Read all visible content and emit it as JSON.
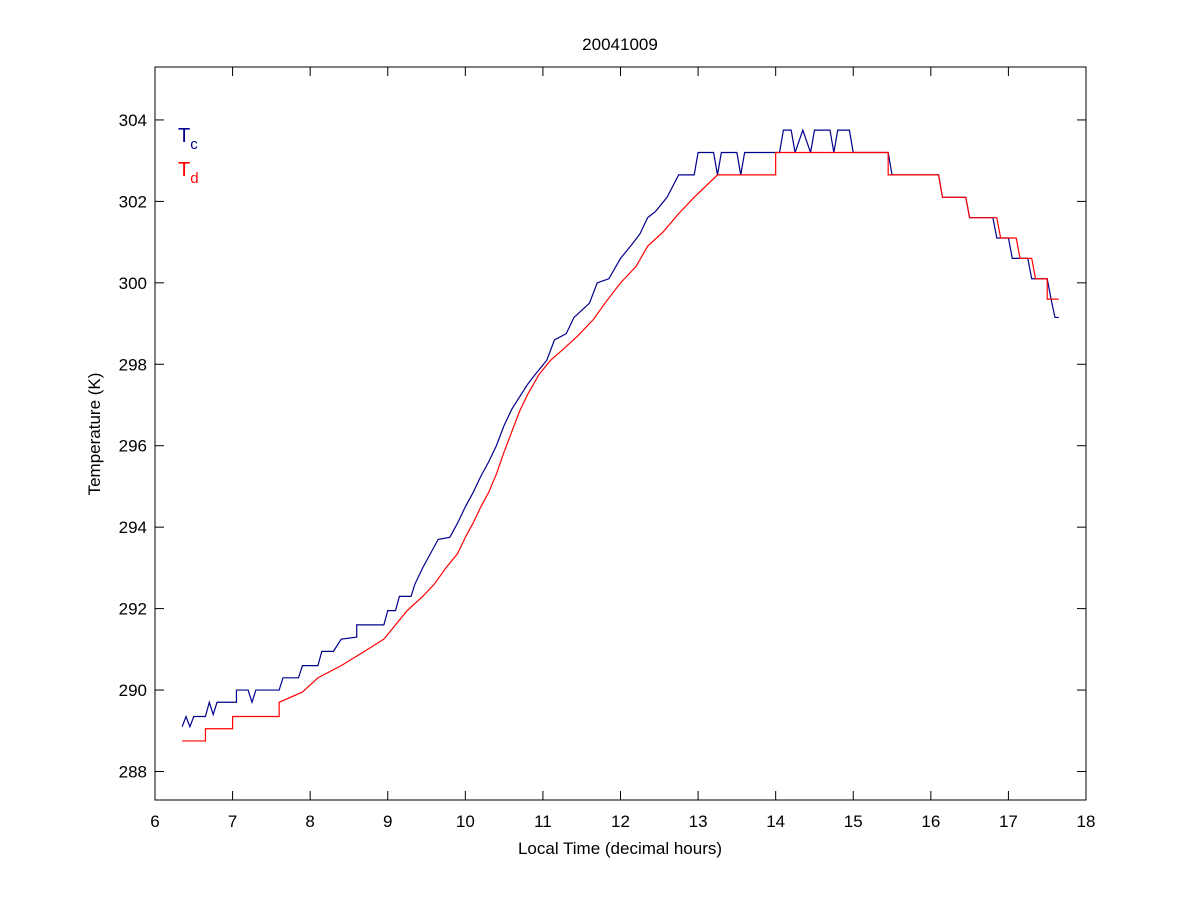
{
  "chart_data": {
    "type": "line",
    "title": "20041009",
    "xlabel": "Local Time (decimal hours)",
    "ylabel": "Temperature (K)",
    "xlim": [
      6,
      18
    ],
    "xticks": [
      6,
      7,
      8,
      9,
      10,
      11,
      12,
      13,
      14,
      15,
      16,
      17,
      18
    ],
    "ylim": [
      287.3,
      305.3
    ],
    "yticks": [
      288,
      290,
      292,
      294,
      296,
      298,
      300,
      302,
      304
    ],
    "legend": "upper left",
    "series": [
      {
        "name": "Tc",
        "color": "#00008b",
        "x": [
          6.35,
          6.4,
          6.45,
          6.5,
          6.65,
          6.7,
          6.75,
          6.8,
          7.05,
          7.05,
          7.2,
          7.25,
          7.3,
          7.6,
          7.65,
          7.85,
          7.9,
          8.1,
          8.15,
          8.3,
          8.4,
          8.6,
          8.6,
          8.95,
          9.0,
          9.1,
          9.15,
          9.3,
          9.35,
          9.45,
          9.55,
          9.65,
          9.8,
          9.9,
          10.0,
          10.1,
          10.2,
          10.3,
          10.4,
          10.5,
          10.6,
          10.7,
          10.8,
          10.9,
          11.05,
          11.15,
          11.3,
          11.4,
          11.6,
          11.7,
          11.85,
          12.0,
          12.15,
          12.25,
          12.35,
          12.45,
          12.6,
          12.75,
          12.95,
          13.0,
          13.2,
          13.25,
          13.3,
          13.5,
          13.55,
          13.6,
          14.05,
          14.1,
          14.2,
          14.25,
          14.35,
          14.45,
          14.5,
          14.7,
          14.75,
          14.8,
          14.95,
          15.0,
          15.45,
          15.5,
          16.1,
          16.15,
          16.45,
          16.5,
          16.8,
          16.85,
          17.0,
          17.05,
          17.25,
          17.3,
          17.5,
          17.55,
          17.6,
          17.65
        ],
        "values": [
          289.1,
          289.35,
          289.1,
          289.35,
          289.35,
          289.7,
          289.4,
          289.7,
          289.7,
          290.0,
          290.0,
          289.7,
          290.0,
          290.0,
          290.3,
          290.3,
          290.6,
          290.6,
          290.95,
          290.95,
          291.25,
          291.3,
          291.6,
          291.6,
          291.95,
          291.95,
          292.3,
          292.3,
          292.6,
          293.0,
          293.35,
          293.7,
          293.75,
          294.1,
          294.5,
          294.85,
          295.25,
          295.6,
          296.0,
          296.5,
          296.9,
          297.2,
          297.5,
          297.75,
          298.1,
          298.6,
          298.75,
          299.15,
          299.5,
          300.0,
          300.1,
          300.6,
          300.95,
          301.2,
          301.6,
          301.75,
          302.1,
          302.65,
          302.65,
          303.2,
          303.2,
          302.65,
          303.2,
          303.2,
          302.65,
          303.2,
          303.2,
          303.75,
          303.75,
          303.2,
          303.75,
          303.2,
          303.75,
          303.75,
          303.2,
          303.75,
          303.75,
          303.2,
          303.2,
          302.65,
          302.65,
          302.1,
          302.1,
          301.6,
          301.6,
          301.1,
          301.1,
          300.6,
          300.6,
          300.1,
          300.1,
          299.6,
          299.15,
          299.15
        ]
      },
      {
        "name": "Td",
        "color": "#ff0000",
        "x": [
          6.35,
          6.65,
          6.65,
          7.0,
          7.0,
          7.6,
          7.6,
          7.9,
          8.1,
          8.4,
          8.7,
          8.95,
          9.1,
          9.25,
          9.45,
          9.6,
          9.75,
          9.9,
          10.0,
          10.1,
          10.2,
          10.3,
          10.4,
          10.5,
          10.6,
          10.7,
          10.8,
          10.95,
          11.1,
          11.25,
          11.45,
          11.65,
          11.8,
          12.0,
          12.2,
          12.35,
          12.55,
          12.75,
          12.95,
          13.25,
          14.0,
          14.0,
          15.45,
          15.45,
          16.1,
          16.15,
          16.45,
          16.5,
          16.85,
          16.9,
          17.1,
          17.15,
          17.3,
          17.35,
          17.5,
          17.5,
          17.65
        ],
        "values": [
          288.75,
          288.75,
          289.05,
          289.05,
          289.35,
          289.35,
          289.7,
          289.95,
          290.3,
          290.6,
          290.95,
          291.25,
          291.6,
          291.95,
          292.3,
          292.6,
          293.0,
          293.35,
          293.75,
          294.1,
          294.5,
          294.85,
          295.3,
          295.85,
          296.35,
          296.85,
          297.25,
          297.75,
          298.1,
          298.35,
          298.7,
          299.1,
          299.5,
          300.0,
          300.4,
          300.9,
          301.25,
          301.7,
          302.1,
          302.65,
          302.65,
          303.2,
          303.2,
          302.65,
          302.65,
          302.1,
          302.1,
          301.6,
          301.6,
          301.1,
          301.1,
          300.6,
          300.6,
          300.1,
          300.1,
          299.6,
          299.6
        ]
      }
    ]
  }
}
